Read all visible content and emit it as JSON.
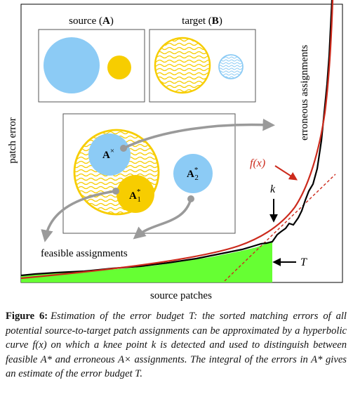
{
  "figure": {
    "axis_y_label": "patch error",
    "axis_x_label": "source patches",
    "source_label": "source (",
    "source_letter": "A",
    "target_label": "target (",
    "target_letter": "B",
    "erroneous_label": "erroneous assignments",
    "feasible_label": "feasible assignments",
    "fx_label": "f(x)",
    "k_label": "k",
    "T_label": "T",
    "a_cross_base": "A",
    "a_cross_sup": "×",
    "a1_base": "A",
    "a1_sup": "*",
    "a1_sub": "1",
    "a2_base": "A",
    "a2_sup": "*",
    "a2_sub": "2",
    "colors": {
      "blue": "#8ccbf5",
      "yellow": "#f7cd00",
      "red": "#cc2a1c",
      "green": "#66ff33",
      "gray": "#9a9a9a",
      "black": "#000000"
    }
  },
  "caption": {
    "label": "Figure 6:",
    "text": "Estimation of the error budget T: the sorted matching errors of all potential source-to-target patch assignments can be approximated by a hyperbolic curve f(x) on which a knee point k is detected and used to distinguish between feasible A* and erroneous A× assignments. The integral of the errors in A* gives an estimate of the error budget T."
  }
}
